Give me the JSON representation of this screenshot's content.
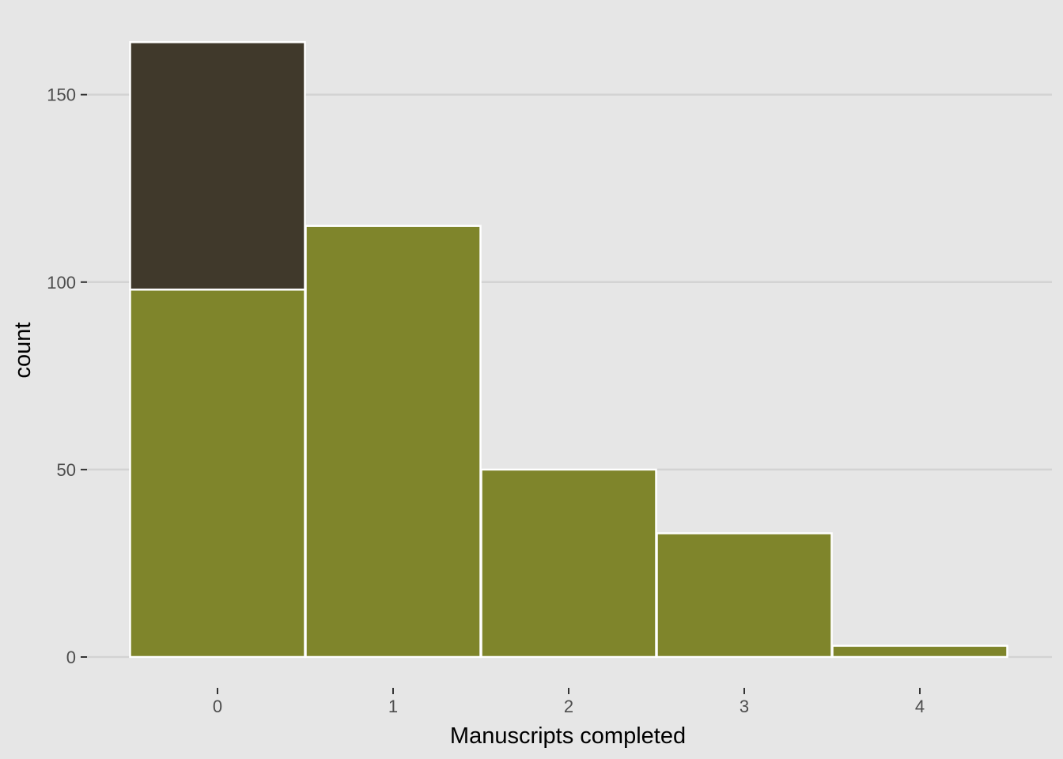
{
  "chart_data": {
    "type": "bar",
    "stacked": true,
    "categories": [
      "0",
      "1",
      "2",
      "3",
      "4"
    ],
    "series": [
      {
        "values": [
          98,
          115,
          50,
          33,
          3
        ],
        "color": "#7f852b"
      },
      {
        "values": [
          66,
          0,
          0,
          0,
          0
        ],
        "color": "#40392b"
      }
    ],
    "xlabel": "Manuscripts completed",
    "ylabel": "count",
    "ylim": [
      -7,
      166
    ],
    "yticks": [
      0,
      50,
      100,
      150
    ],
    "ytick_labels": [
      "0",
      "50",
      "100",
      "150"
    ],
    "grid": true,
    "legend": "none"
  },
  "colors": {
    "panel_background": "#e6e6e6",
    "gridline": "#d3d3d3",
    "bar_border": "#ffffff"
  }
}
